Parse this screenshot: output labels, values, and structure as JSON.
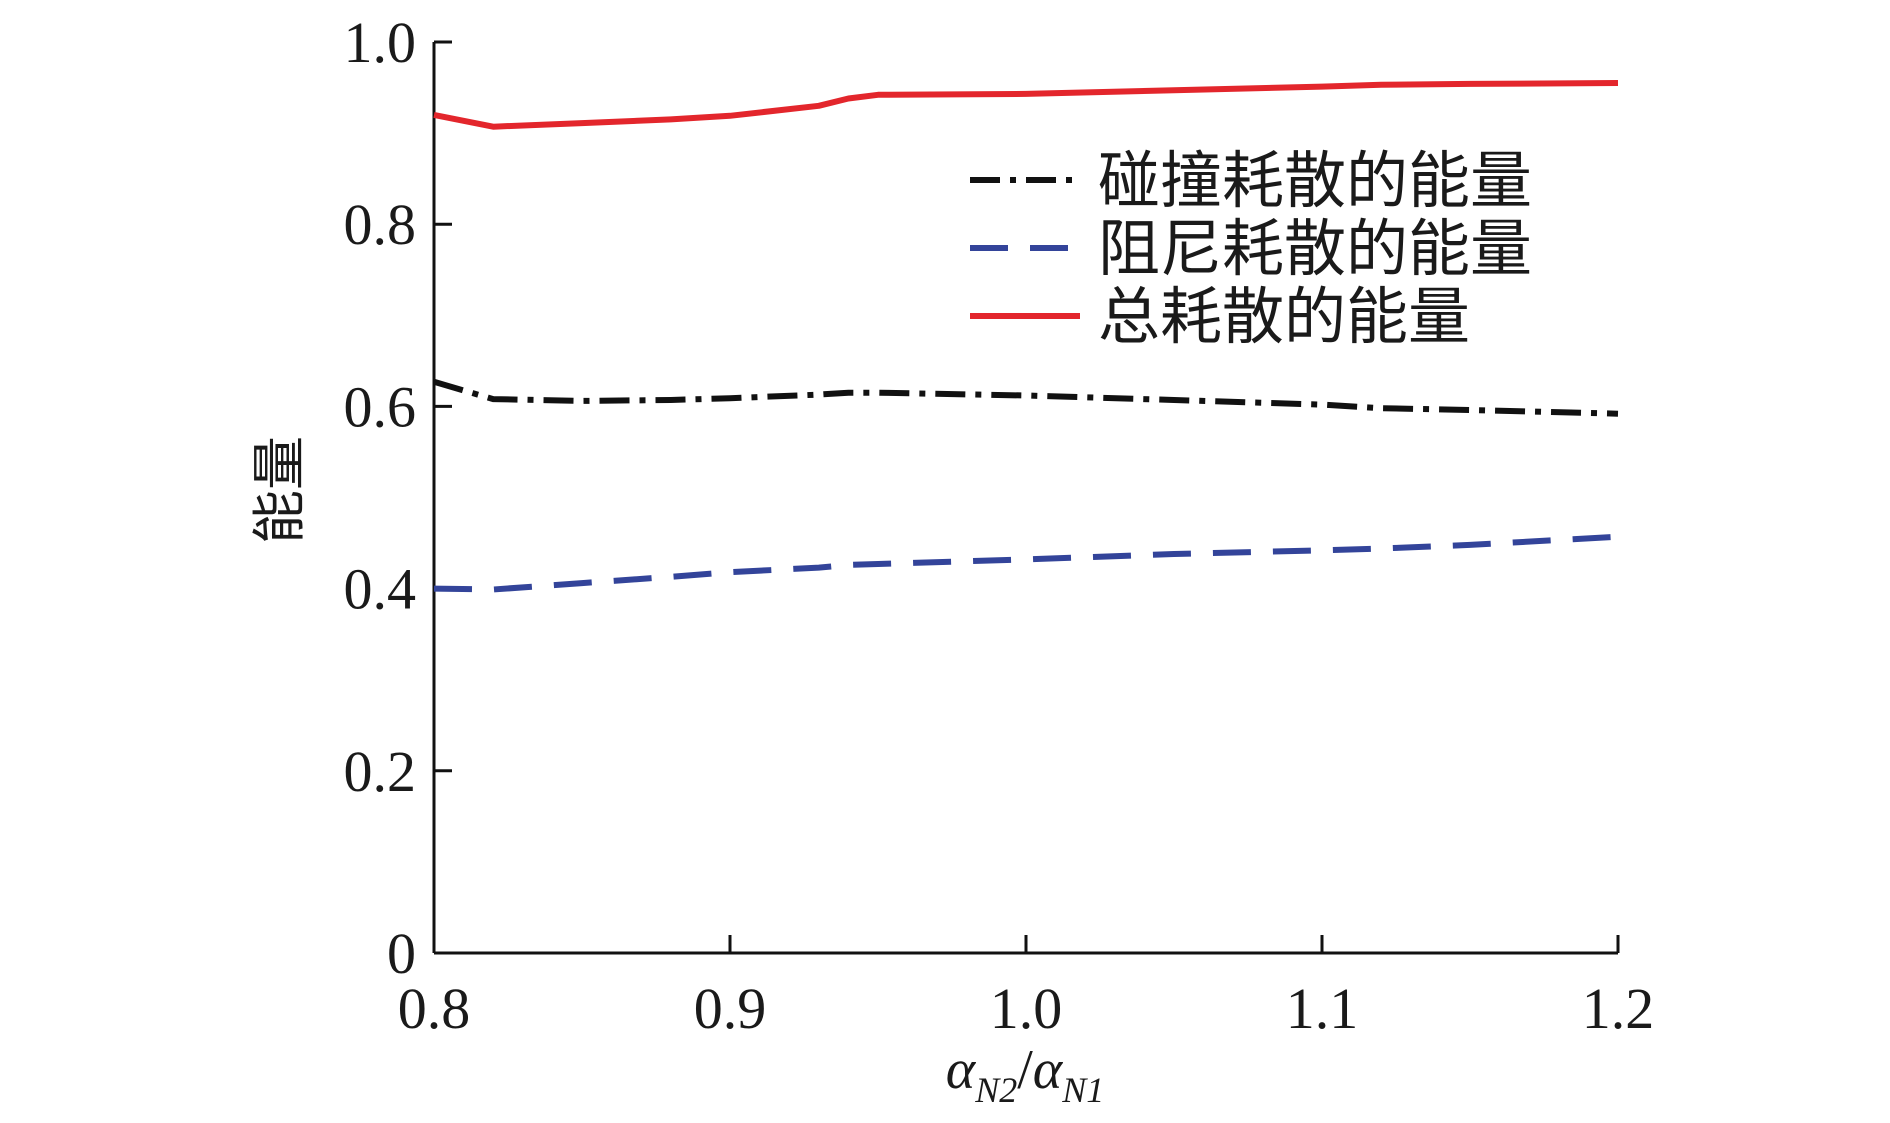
{
  "chart_data": {
    "type": "line",
    "title": "",
    "xlabel": "α_N2/α_N1",
    "xlabel_parts": {
      "num": "α",
      "num_sub": "N2",
      "slash": "/",
      "den": "α",
      "den_sub": "N1"
    },
    "ylabel": "能量",
    "xlim": [
      0.8,
      1.2
    ],
    "ylim": [
      0,
      1.0
    ],
    "x_ticks": [
      "0.8",
      "0.9",
      "1.0",
      "1.1",
      "1.2"
    ],
    "y_ticks": [
      "0",
      "0.2",
      "0.4",
      "0.6",
      "0.8",
      "1.0"
    ],
    "grid": false,
    "legend_position": "top-right",
    "x": [
      0.8,
      0.82,
      0.85,
      0.88,
      0.9,
      0.93,
      0.94,
      0.95,
      1.0,
      1.05,
      1.1,
      1.12,
      1.15,
      1.2
    ],
    "series": [
      {
        "name": "碰撞耗散的能量",
        "color": "#111111",
        "style": "dash-dot",
        "values": [
          0.627,
          0.608,
          0.606,
          0.607,
          0.609,
          0.613,
          0.615,
          0.615,
          0.612,
          0.607,
          0.602,
          0.598,
          0.596,
          0.592
        ]
      },
      {
        "name": "阻尼耗散的能量",
        "color": "#33449a",
        "style": "dashed",
        "values": [
          0.4,
          0.399,
          0.406,
          0.413,
          0.418,
          0.423,
          0.426,
          0.427,
          0.432,
          0.438,
          0.442,
          0.444,
          0.448,
          0.457
        ]
      },
      {
        "name": "总耗散的能量",
        "color": "#e3262c",
        "style": "solid",
        "values": [
          0.92,
          0.907,
          0.911,
          0.915,
          0.919,
          0.93,
          0.938,
          0.942,
          0.943,
          0.947,
          0.951,
          0.953,
          0.954,
          0.955
        ]
      }
    ]
  }
}
